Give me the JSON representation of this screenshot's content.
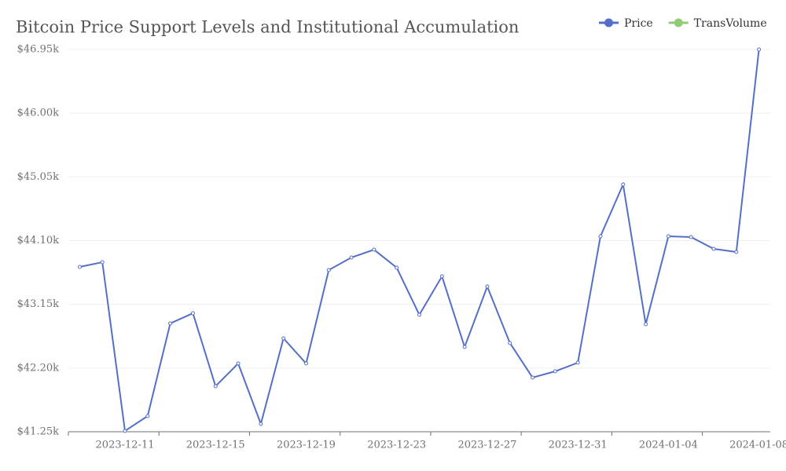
{
  "chart_data": {
    "type": "line",
    "title": "Bitcoin Price Support Levels and Institutional Accumulation",
    "categories": [
      null,
      null,
      "2023-12-11",
      null,
      null,
      null,
      "2023-12-15",
      null,
      null,
      null,
      "2023-12-19",
      null,
      null,
      null,
      "2023-12-23",
      null,
      null,
      null,
      "2023-12-27",
      null,
      null,
      null,
      "2023-12-31",
      null,
      null,
      null,
      "2024-01-04",
      null,
      null,
      null,
      "2024-01-08"
    ],
    "series": [
      {
        "name": "Price",
        "color": "#5470c6",
        "values": [
          43708,
          43778,
          41262,
          41484,
          42865,
          43017,
          41929,
          42268,
          41367,
          42643,
          42268,
          43661,
          43848,
          43965,
          43696,
          42994,
          43567,
          42514,
          43415,
          42573,
          42058,
          42151,
          42280,
          44164,
          44937,
          42853,
          44164,
          44153,
          43977,
          43930,
          46950
        ]
      },
      {
        "name": "TransVolume",
        "color": "#91cc75",
        "values": [
          null,
          null,
          null,
          null,
          null,
          null,
          null,
          null,
          null,
          null,
          null,
          null,
          null,
          null,
          null,
          null,
          null,
          null,
          null,
          null,
          null,
          null,
          null,
          null,
          null,
          null,
          null,
          null,
          null,
          null,
          null
        ]
      }
    ],
    "ylim": [
      41250,
      46950
    ],
    "yticks": [
      {
        "value": 41250,
        "label": "$41.25k"
      },
      {
        "value": 42200,
        "label": "$42.20k"
      },
      {
        "value": 43150,
        "label": "$43.15k"
      },
      {
        "value": 44100,
        "label": "$44.10k"
      },
      {
        "value": 45050,
        "label": "$45.05k"
      },
      {
        "value": 46000,
        "label": "$46.00k"
      },
      {
        "value": 46950,
        "label": "$46.95k"
      }
    ],
    "grid": true
  }
}
